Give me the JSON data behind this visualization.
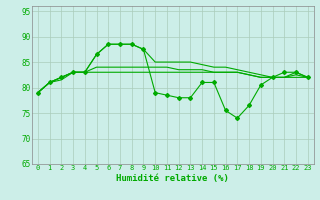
{
  "xlabel": "Humidité relative (%)",
  "bg_color": "#cceee8",
  "grid_color": "#aaccbb",
  "line_color": "#00aa00",
  "xlim": [
    -0.5,
    23.5
  ],
  "ylim": [
    65,
    96
  ],
  "yticks": [
    65,
    70,
    75,
    80,
    85,
    90,
    95
  ],
  "xticks": [
    0,
    1,
    2,
    3,
    4,
    5,
    6,
    7,
    8,
    9,
    10,
    11,
    12,
    13,
    14,
    15,
    16,
    17,
    18,
    19,
    20,
    21,
    22,
    23
  ],
  "line1": [
    79,
    81,
    81.5,
    83,
    83,
    86.5,
    88.5,
    88.5,
    88.5,
    87.5,
    85,
    85,
    85,
    85,
    84.5,
    84,
    84,
    83.5,
    83,
    82.5,
    82,
    82,
    83,
    82
  ],
  "line2": [
    79,
    81,
    82,
    83,
    83,
    84,
    84,
    84,
    84,
    84,
    84,
    84,
    83.5,
    83.5,
    83.5,
    83,
    83,
    83,
    82.5,
    82,
    82,
    82,
    82.5,
    82
  ],
  "line3": [
    79,
    81,
    82,
    83,
    83,
    83,
    83,
    83,
    83,
    83,
    83,
    83,
    83,
    83,
    83,
    83,
    83,
    83,
    82.5,
    82,
    82,
    82,
    82,
    82
  ],
  "line4_marked": [
    79,
    81,
    82,
    83,
    83,
    86.5,
    88.5,
    88.5,
    88.5,
    87.5,
    79,
    78.5,
    78,
    78,
    81,
    81,
    75.5,
    74,
    76.5,
    80.5,
    82,
    83,
    83,
    82
  ]
}
